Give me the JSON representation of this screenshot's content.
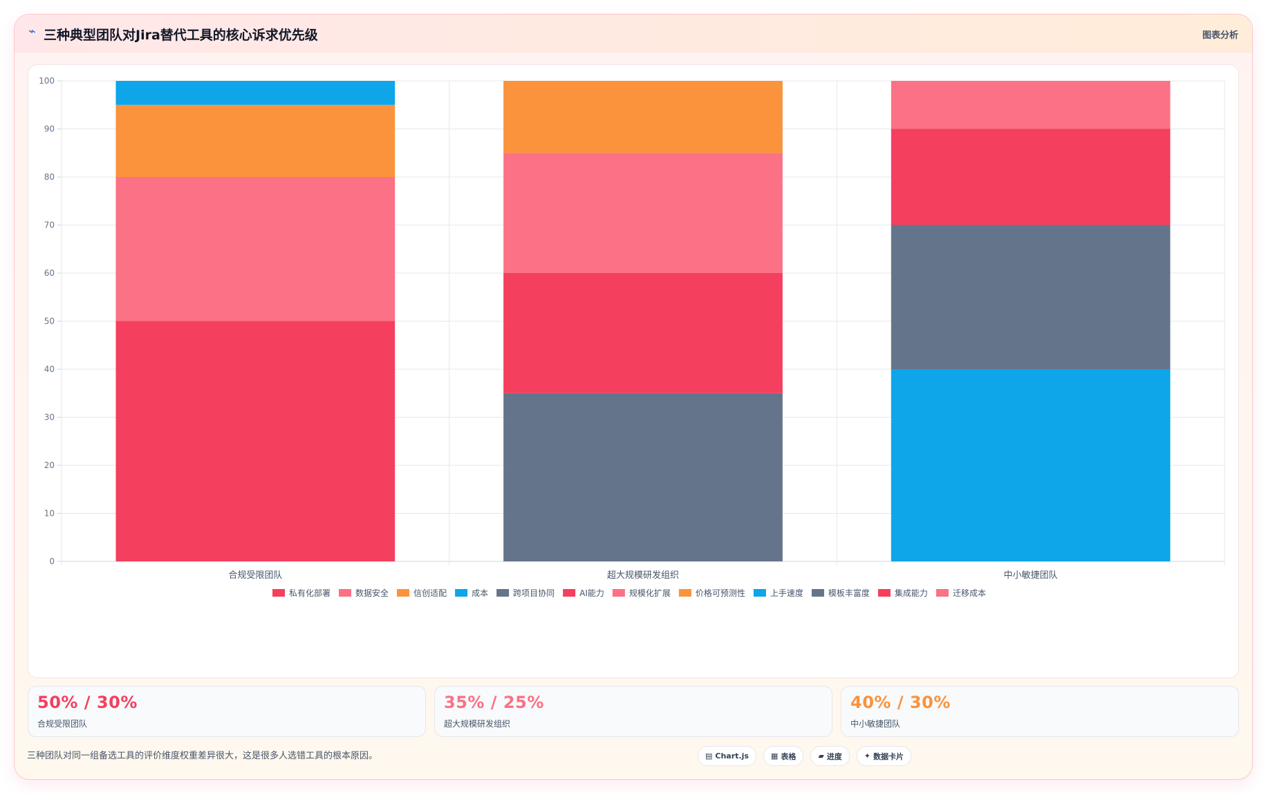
{
  "header": {
    "icon": "chart-line-icon",
    "title": "三种典型团队对Jira替代工具的核心诉求优先级",
    "action_label": "图表分析"
  },
  "chart_data": {
    "type": "bar",
    "stacked": true,
    "categories": [
      "合规受限团队",
      "超大规模研发组织",
      "中小敏捷团队"
    ],
    "ylim": [
      0,
      100
    ],
    "yticks": [
      0,
      10,
      20,
      30,
      40,
      50,
      60,
      70,
      80,
      90,
      100
    ],
    "grid": true,
    "legend_position": "bottom",
    "series": [
      {
        "name": "私有化部署",
        "color": "#f43f5e",
        "values": [
          50,
          0,
          0
        ]
      },
      {
        "name": "数据安全",
        "color": "#fb7185",
        "values": [
          30,
          0,
          0
        ]
      },
      {
        "name": "信创适配",
        "color": "#fb923c",
        "values": [
          15,
          0,
          0
        ]
      },
      {
        "name": "成本",
        "color": "#0ea5e9",
        "values": [
          5,
          0,
          0
        ]
      },
      {
        "name": "跨项目协同",
        "color": "#64748b",
        "values": [
          0,
          35,
          0
        ]
      },
      {
        "name": "AI能力",
        "color": "#f43f5e",
        "values": [
          0,
          25,
          0
        ]
      },
      {
        "name": "规模化扩展",
        "color": "#fb7185",
        "values": [
          0,
          25,
          0
        ]
      },
      {
        "name": "价格可预测性",
        "color": "#fb923c",
        "values": [
          0,
          15,
          0
        ]
      },
      {
        "name": "上手速度",
        "color": "#0ea5e9",
        "values": [
          0,
          0,
          40
        ]
      },
      {
        "name": "模板丰富度",
        "color": "#64748b",
        "values": [
          0,
          0,
          30
        ]
      },
      {
        "name": "集成能力",
        "color": "#f43f5e",
        "values": [
          0,
          0,
          20
        ]
      },
      {
        "name": "迁移成本",
        "color": "#fb7185",
        "values": [
          0,
          0,
          10
        ]
      }
    ]
  },
  "stats": [
    {
      "value": "50% / 30%",
      "label": "合规受限团队",
      "color": "#f43f5e"
    },
    {
      "value": "35% / 25%",
      "label": "超大规模研发组织",
      "color": "#fb7185"
    },
    {
      "value": "40% / 30%",
      "label": "中小敏捷团队",
      "color": "#fb923c"
    }
  ],
  "footnote": "三种团队对同一组备选工具的评价维度权重差异很大，这是很多人选错工具的根本原因。",
  "pills": [
    {
      "icon": "bar-chart-icon",
      "glyph": "▤",
      "label": "Chart.js"
    },
    {
      "icon": "table-icon",
      "glyph": "▦",
      "label": "表格"
    },
    {
      "icon": "progress-icon",
      "glyph": "▰",
      "label": "进度"
    },
    {
      "icon": "sparkle-icon",
      "glyph": "✦",
      "label": "数据卡片"
    }
  ]
}
